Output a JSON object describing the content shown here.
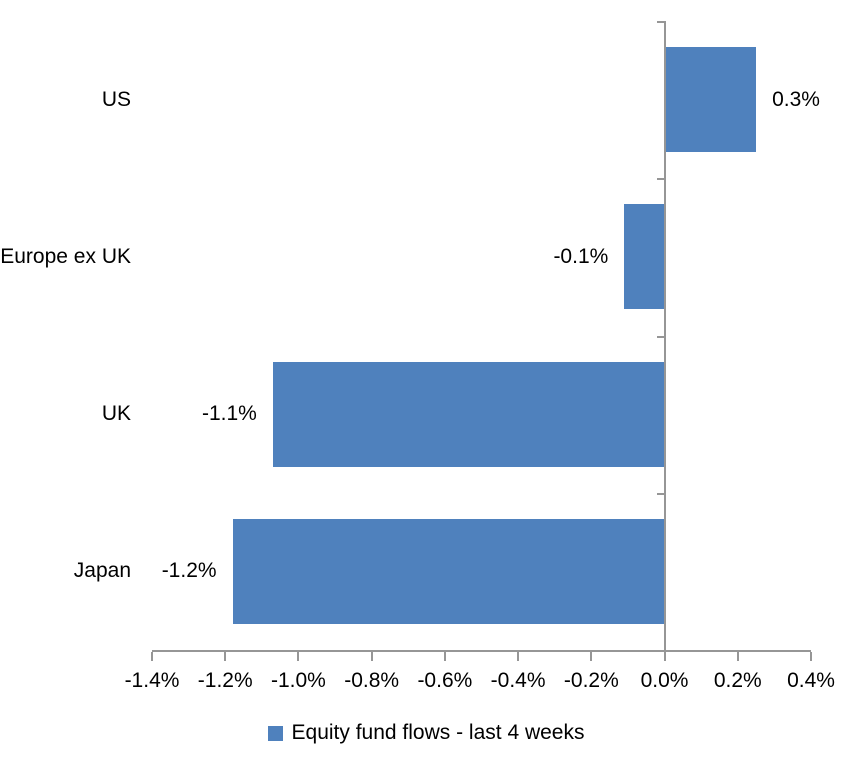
{
  "chart_data": {
    "type": "bar",
    "orientation": "horizontal",
    "title": "",
    "xlabel": "",
    "ylabel": "",
    "categories": [
      "US",
      "Europe ex UK",
      "UK",
      "Japan"
    ],
    "series": [
      {
        "name": "Equity fund flows - last 4 weeks",
        "values": [
          0.3,
          -0.1,
          -1.1,
          -1.2
        ],
        "data_labels": [
          "0.3%",
          "-0.1%",
          "-1.1%",
          "-1.2%"
        ],
        "bar_extents_pct": [
          0.25,
          -0.11,
          -1.07,
          -1.18
        ]
      }
    ],
    "xlim": [
      -1.4,
      0.4
    ],
    "x_tick_step": 0.2,
    "x_tick_labels": [
      "-1.4%",
      "-1.2%",
      "-1.0%",
      "-0.8%",
      "-0.6%",
      "-0.4%",
      "-0.2%",
      "0.0%",
      "0.2%",
      "0.4%"
    ],
    "grid": false,
    "legend_position": "bottom",
    "colors": {
      "bar": "#4F81BD",
      "axis": "#969696",
      "text": "#000000",
      "background": "#FFFFFF"
    }
  },
  "legend": {
    "label": "Equity fund flows - last 4 weeks"
  }
}
